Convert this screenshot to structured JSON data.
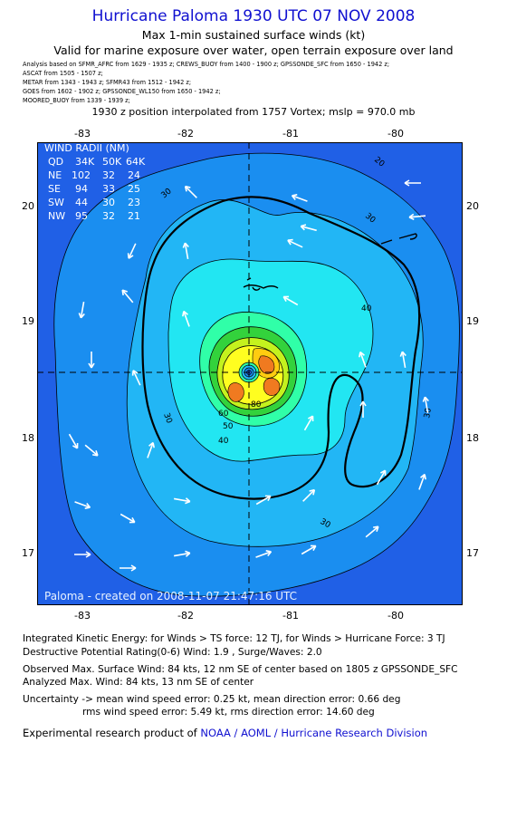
{
  "header": {
    "title": "Hurricane Paloma 1930 UTC 07 NOV 2008",
    "subtitle": "Max 1-min sustained surface winds (kt)",
    "validity": "Valid for marine exposure over water, open terrain exposure over land"
  },
  "sources": [
    "Analysis based on  SFMR_AFRC from 1629 - 1935 z;  CREWS_BUOY from 1400 - 1900 z;  GPSSONDE_SFC from 1650 - 1942 z;",
    "ASCAT from 1505 - 1507 z;",
    "METAR from 1343 - 1943 z;  SFMR43 from 1512 - 1942 z;",
    "GOES from 1602 - 1902 z;  GPSSONDE_WL150 from 1650 - 1942 z;",
    "MOORED_BUOY from 1339 - 1939 z;"
  ],
  "position_note": "1930 z position interpolated from 1757 Vortex; mslp = 970.0 mb",
  "map": {
    "lon_ticks": [
      "-83",
      "-82",
      "-81",
      "-80"
    ],
    "lat_ticks": [
      "20",
      "19",
      "18",
      "17"
    ],
    "lon_range": [
      -83.35,
      -79.35
    ],
    "lat_range": [
      16.55,
      20.55
    ],
    "center": {
      "lon": -81.3,
      "lat": 18.55
    },
    "credit": "Paloma - created on 2008-11-07 21:47:16 UTC",
    "contour_labels": [
      "20",
      "30",
      "30",
      "30",
      "30",
      "30",
      "40",
      "40",
      "50",
      "60",
      "80"
    ],
    "colors": {
      "level_20": "#2060e6",
      "level_30": "#1a8ef0",
      "level_35": "#22b6f5",
      "level_40": "#22e6f2",
      "level_50": "#30ffa8",
      "level_60": "#33d23c",
      "level_70": "#c4f21e",
      "level_75": "#fffe20",
      "level_80": "#ffcc10",
      "level_84": "#f07a20",
      "arrow": "#ffffff"
    }
  },
  "wind_radii": {
    "heading": "WIND RADII (NM)",
    "columns": [
      "QD",
      "34K",
      "50K",
      "64K"
    ],
    "rows": [
      [
        "NE",
        "102",
        "32",
        "24"
      ],
      [
        "SE",
        "94",
        "33",
        "25"
      ],
      [
        "SW",
        "44",
        "30",
        "23"
      ],
      [
        "NW",
        "95",
        "32",
        "21"
      ]
    ]
  },
  "footer": {
    "ike": "Integrated Kinetic Energy:  for Winds > TS force: 12 TJ,  for Winds > Hurricane Force: 3 TJ",
    "dpr": "Destructive Potential Rating(0-6)   Wind: 1.9 , Surge/Waves: 2.0",
    "obs_max": "Observed Max. Surface Wind: 84 kts, 12 nm SE of center based on 1805 z GPSSONDE_SFC",
    "an_max": "Analyzed Max. Wind: 84 kts, 13 nm SE of center",
    "unc1": "Uncertainty -> mean wind speed error: 0.25 kt,   mean direction error: 0.66 deg",
    "unc2": "rms wind speed error: 5.49 kt,   rms direction error: 14.60 deg",
    "product_prefix": "Experimental research product of",
    "product_org": "NOAA / AOML / Hurricane Research Division"
  }
}
